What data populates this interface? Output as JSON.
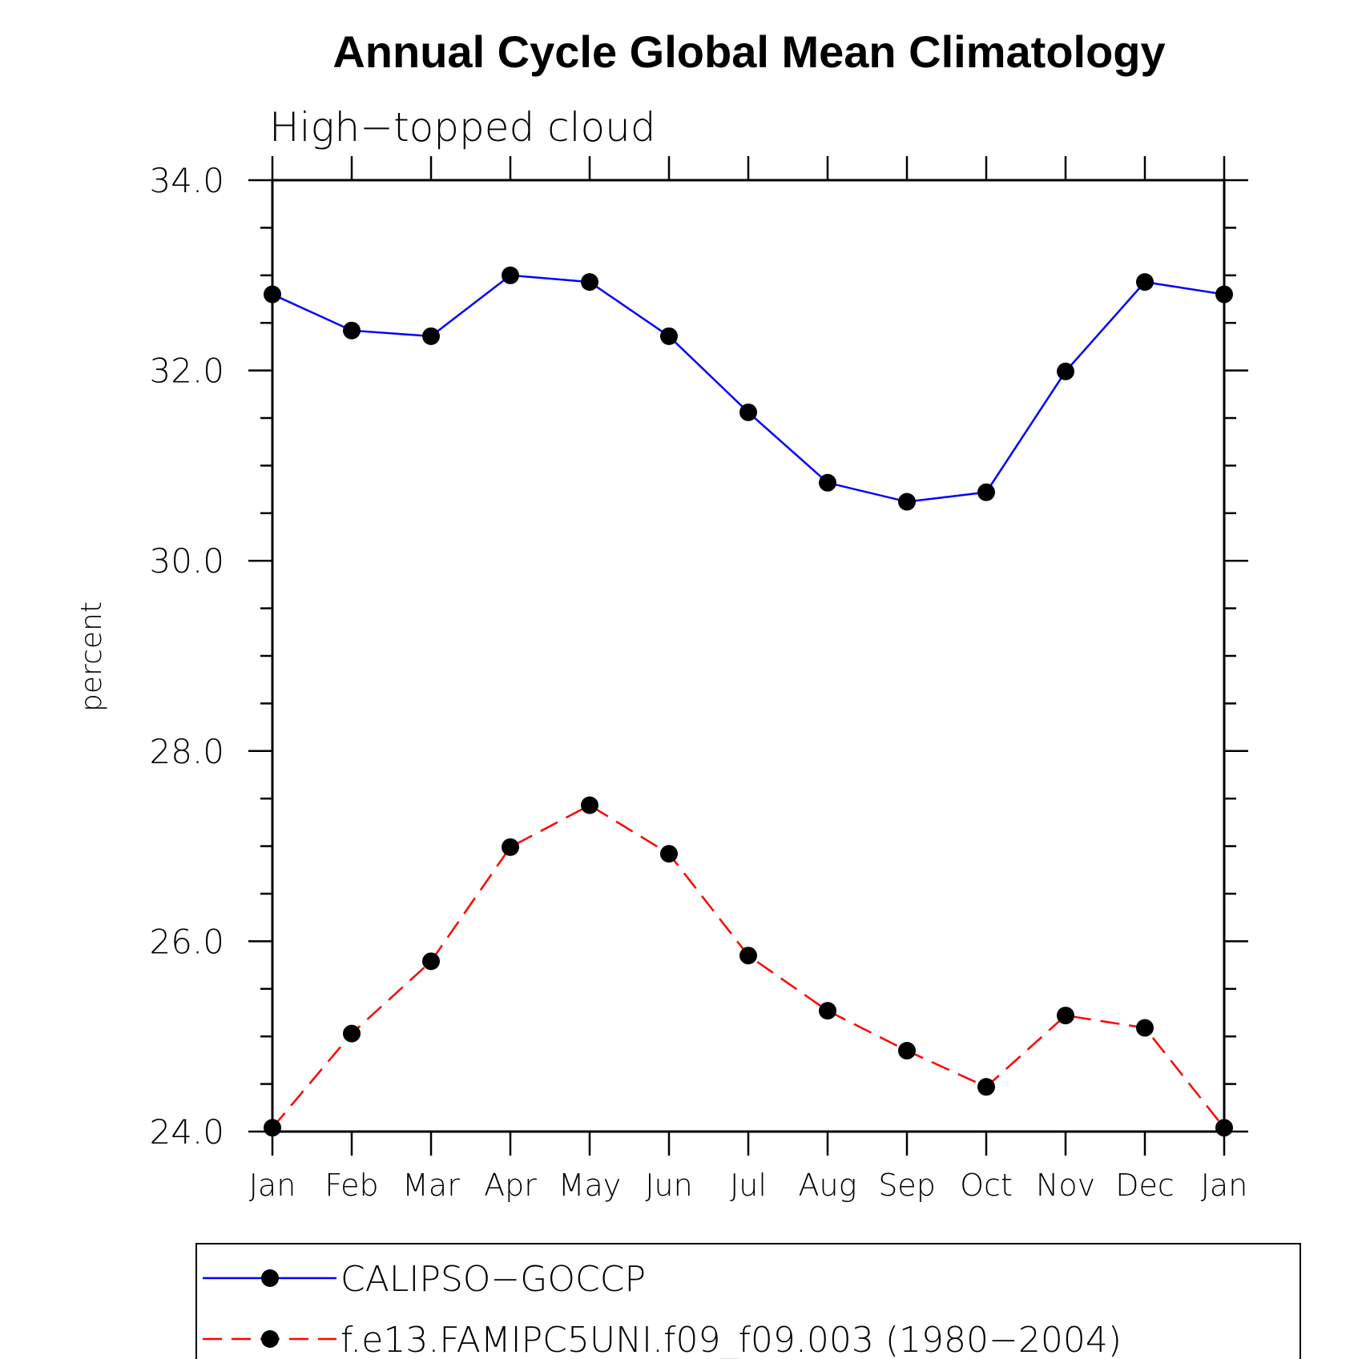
{
  "chart_data": {
    "type": "line",
    "title": "Annual Cycle Global Mean Climatology",
    "subtitle": "High−topped cloud",
    "xlabel": "",
    "ylabel": "percent",
    "ylim": [
      24.0,
      34.0
    ],
    "yticks": [
      "24.0",
      "26.0",
      "28.0",
      "30.0",
      "32.0",
      "34.0"
    ],
    "categories": [
      "Jan",
      "Feb",
      "Mar",
      "Apr",
      "May",
      "Jun",
      "Jul",
      "Aug",
      "Sep",
      "Oct",
      "Nov",
      "Dec",
      "Jan"
    ],
    "series": [
      {
        "name": "CALIPSO−GOCCP",
        "color": "#0000ff",
        "dash": "solid",
        "values": [
          32.8,
          32.42,
          32.36,
          33.0,
          32.93,
          32.36,
          31.56,
          30.82,
          30.62,
          30.72,
          31.99,
          32.93,
          32.8
        ]
      },
      {
        "name": "f.e13.FAMIPC5UNI.f09_f09.003 (1980−2004)",
        "color": "#ff0000",
        "dash": "dashed",
        "values": [
          24.04,
          25.03,
          25.79,
          26.99,
          27.43,
          26.92,
          25.85,
          25.27,
          24.85,
          24.47,
          25.22,
          25.09,
          24.04
        ]
      }
    ],
    "marker_color": "#000000",
    "grid": false,
    "legend_position": "bottom"
  }
}
